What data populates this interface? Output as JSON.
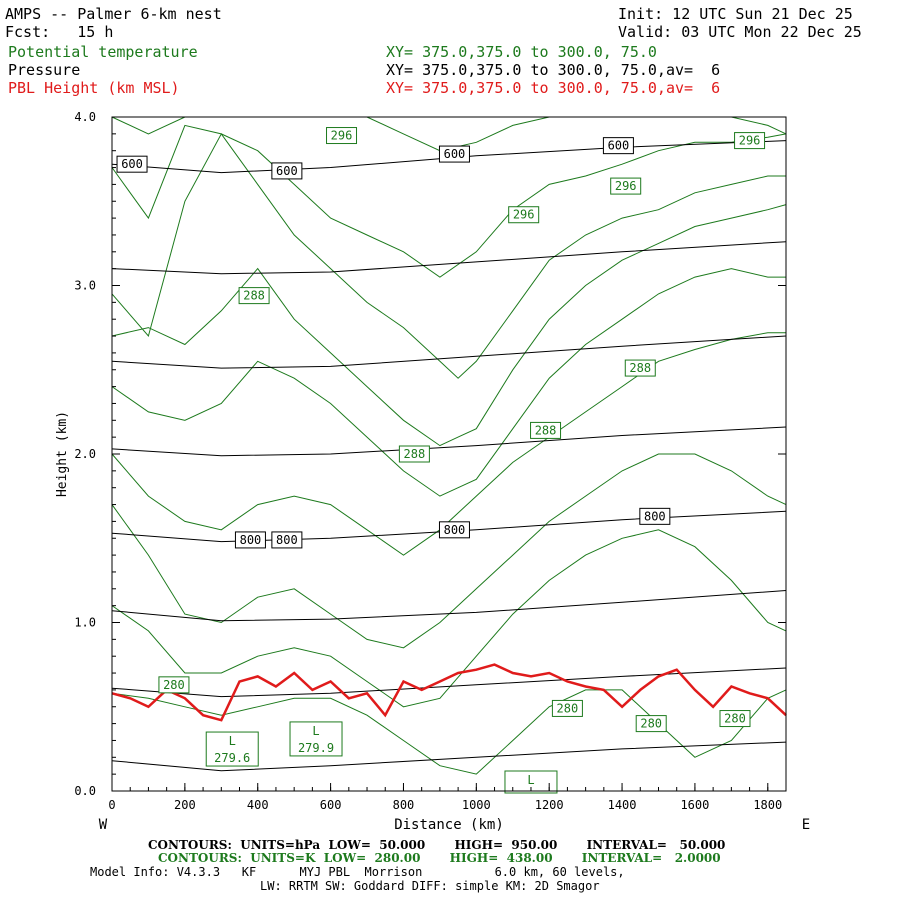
{
  "header": {
    "title": "AMPS -- Palmer 6-km nest",
    "fcst": "Fcst:   15 h",
    "init": "Init: 12 UTC Sun 21 Dec 25",
    "valid": "Valid: 03 UTC Mon 22 Dec 25",
    "fields": [
      {
        "name": "Potential temperature",
        "xy": "XY= 375.0,375.0 to 300.0, 75.0",
        "color": "#1d7a1d"
      },
      {
        "name": "Pressure",
        "xy": "XY= 375.0,375.0 to 300.0, 75.0,av=  6",
        "color": "#000000"
      },
      {
        "name": "PBL Height (km MSL)",
        "xy": "XY= 375.0,375.0 to 300.0, 75.0,av=  6",
        "color": "#e01b1b"
      }
    ]
  },
  "footer": {
    "contours_p": "CONTOURS:  UNITS=hPa  LOW=  50.000       HIGH=  950.00       INTERVAL=   50.000",
    "contours_k": "CONTOURS:  UNITS=K  LOW=  280.00       HIGH=  438.00       INTERVAL=   2.0000",
    "model_info": "Model Info: V4.3.3   KF      MYJ PBL  Morrison          6.0 km, 60 levels,",
    "model_info2": "LW: RRTM SW: Goddard DIFF: simple KM: 2D Smagor"
  },
  "chart_data": {
    "type": "line",
    "xlabel": "Distance (km)",
    "ylabel": "Height (km)",
    "x_ticks": [
      0,
      200,
      400,
      600,
      800,
      1000,
      1200,
      1400,
      1600,
      1800
    ],
    "y_ticks": [
      "0.0",
      "1.0",
      "2.0",
      "3.0",
      "4.0"
    ],
    "xlim": [
      0,
      1850
    ],
    "ylim": [
      0,
      4
    ],
    "x_end_labels": {
      "left": "W",
      "right": "E"
    },
    "pressure_contours": {
      "color": "#000000",
      "lines": [
        {
          "x": [
            0,
            300,
            600,
            1000,
            1400,
            1850
          ],
          "y": [
            0.18,
            0.12,
            0.15,
            0.2,
            0.25,
            0.29
          ]
        },
        {
          "x": [
            0,
            300,
            600,
            1000,
            1400,
            1850
          ],
          "y": [
            0.61,
            0.56,
            0.58,
            0.63,
            0.68,
            0.73
          ]
        },
        {
          "x": [
            0,
            300,
            600,
            1000,
            1400,
            1850
          ],
          "y": [
            1.07,
            1.01,
            1.02,
            1.06,
            1.12,
            1.19
          ]
        },
        {
          "x": [
            0,
            300,
            600,
            1000,
            1400,
            1850
          ],
          "y": [
            1.53,
            1.48,
            1.5,
            1.55,
            1.61,
            1.66
          ]
        },
        {
          "x": [
            0,
            300,
            600,
            1000,
            1400,
            1850
          ],
          "y": [
            2.03,
            1.99,
            2.0,
            2.05,
            2.11,
            2.16
          ]
        },
        {
          "x": [
            0,
            300,
            600,
            1000,
            1400,
            1850
          ],
          "y": [
            2.55,
            2.51,
            2.52,
            2.58,
            2.64,
            2.7
          ]
        },
        {
          "x": [
            0,
            300,
            600,
            1000,
            1400,
            1850
          ],
          "y": [
            3.1,
            3.07,
            3.08,
            3.14,
            3.2,
            3.26
          ]
        },
        {
          "x": [
            0,
            300,
            600,
            1000,
            1400,
            1850
          ],
          "y": [
            3.72,
            3.67,
            3.7,
            3.77,
            3.82,
            3.86
          ]
        }
      ],
      "labels": [
        {
          "text": "600",
          "x": 55,
          "y": 3.72
        },
        {
          "text": "600",
          "x": 480,
          "y": 3.68
        },
        {
          "text": "600",
          "x": 940,
          "y": 3.78
        },
        {
          "text": "600",
          "x": 1390,
          "y": 3.83
        },
        {
          "text": "800",
          "x": 380,
          "y": 1.49
        },
        {
          "text": "800",
          "x": 480,
          "y": 1.49
        },
        {
          "text": "800",
          "x": 940,
          "y": 1.55
        },
        {
          "text": "800",
          "x": 1490,
          "y": 1.63
        }
      ]
    },
    "theta_contours": {
      "color": "#1d7a1d",
      "lines": [
        {
          "x": [
            0,
            100,
            200,
            300,
            400,
            500,
            600,
            700,
            800,
            900,
            1000,
            1100,
            1200,
            1300,
            1400,
            1500,
            1600,
            1700,
            1800,
            1850
          ],
          "y": [
            4.0,
            3.9,
            4.0,
            4.0,
            4.0,
            4.0,
            4.0,
            4.0,
            3.9,
            3.8,
            3.85,
            3.95,
            4.0,
            4.0,
            4.0,
            4.0,
            4.0,
            4.0,
            3.95,
            3.9
          ]
        },
        {
          "x": [
            0,
            100,
            200,
            300,
            400,
            500,
            600,
            700,
            800,
            900,
            1000,
            1100,
            1200,
            1300,
            1400,
            1500,
            1600,
            1700,
            1800,
            1850
          ],
          "y": [
            3.7,
            3.4,
            3.95,
            3.9,
            3.8,
            3.6,
            3.4,
            3.3,
            3.2,
            3.05,
            3.2,
            3.45,
            3.6,
            3.65,
            3.72,
            3.8,
            3.85,
            3.85,
            3.88,
            3.9
          ]
        },
        {
          "x": [
            0,
            100,
            200,
            300,
            400,
            500,
            600,
            700,
            800,
            900,
            950,
            1000,
            1100,
            1200,
            1300,
            1400,
            1500,
            1600,
            1700,
            1800,
            1850
          ],
          "y": [
            2.95,
            2.7,
            3.5,
            3.9,
            3.6,
            3.3,
            3.1,
            2.9,
            2.75,
            2.55,
            2.45,
            2.55,
            2.85,
            3.15,
            3.3,
            3.4,
            3.45,
            3.55,
            3.6,
            3.65,
            3.65
          ]
        },
        {
          "x": [
            0,
            100,
            200,
            300,
            400,
            500,
            600,
            700,
            800,
            900,
            950,
            1000,
            1100,
            1200,
            1300,
            1400,
            1500,
            1600,
            1700,
            1800,
            1850
          ],
          "y": [
            2.7,
            2.75,
            2.65,
            2.85,
            3.1,
            2.8,
            2.6,
            2.4,
            2.2,
            2.05,
            2.1,
            2.15,
            2.5,
            2.8,
            3.0,
            3.15,
            3.25,
            3.35,
            3.4,
            3.45,
            3.48
          ]
        },
        {
          "x": [
            0,
            100,
            200,
            300,
            400,
            500,
            600,
            700,
            800,
            900,
            950,
            1000,
            1100,
            1200,
            1300,
            1400,
            1500,
            1600,
            1700,
            1800,
            1850
          ],
          "y": [
            2.4,
            2.25,
            2.2,
            2.3,
            2.55,
            2.45,
            2.3,
            2.1,
            1.9,
            1.75,
            1.8,
            1.85,
            2.15,
            2.45,
            2.65,
            2.8,
            2.95,
            3.05,
            3.1,
            3.05,
            3.05
          ]
        },
        {
          "x": [
            0,
            100,
            200,
            300,
            400,
            500,
            600,
            700,
            800,
            900,
            1000,
            1100,
            1200,
            1300,
            1400,
            1500,
            1600,
            1700,
            1800,
            1850
          ],
          "y": [
            2.0,
            1.75,
            1.6,
            1.55,
            1.7,
            1.75,
            1.7,
            1.55,
            1.4,
            1.55,
            1.75,
            1.95,
            2.1,
            2.25,
            2.4,
            2.55,
            2.62,
            2.68,
            2.72,
            2.72
          ]
        },
        {
          "x": [
            0,
            100,
            200,
            300,
            400,
            500,
            600,
            700,
            800,
            900,
            1000,
            1100,
            1200,
            1300,
            1400,
            1500,
            1600,
            1700,
            1800,
            1850
          ],
          "y": [
            1.7,
            1.4,
            1.05,
            1.0,
            1.15,
            1.2,
            1.05,
            0.9,
            0.85,
            1.0,
            1.2,
            1.4,
            1.6,
            1.75,
            1.9,
            2.0,
            2.0,
            1.9,
            1.75,
            1.7
          ]
        },
        {
          "x": [
            0,
            100,
            200,
            300,
            400,
            500,
            600,
            700,
            800,
            900,
            1000,
            1100,
            1200,
            1300,
            1400,
            1500,
            1600,
            1700,
            1800,
            1850
          ],
          "y": [
            1.1,
            0.95,
            0.7,
            0.7,
            0.8,
            0.85,
            0.8,
            0.65,
            0.5,
            0.55,
            0.8,
            1.05,
            1.25,
            1.4,
            1.5,
            1.55,
            1.45,
            1.25,
            1.0,
            0.95
          ]
        },
        {
          "x": [
            0,
            100,
            200,
            300,
            400,
            500,
            600,
            700,
            800,
            900,
            1000,
            1100,
            1200,
            1300,
            1400,
            1500,
            1600,
            1700,
            1800,
            1850
          ],
          "y": [
            0.58,
            0.55,
            0.5,
            0.45,
            0.5,
            0.55,
            0.55,
            0.45,
            0.3,
            0.15,
            0.1,
            0.3,
            0.5,
            0.6,
            0.6,
            0.4,
            0.2,
            0.3,
            0.55,
            0.6
          ]
        }
      ],
      "labels": [
        {
          "text": "296",
          "x": 630,
          "y": 3.89
        },
        {
          "text": "296",
          "x": 1410,
          "y": 3.59
        },
        {
          "text": "296",
          "x": 1130,
          "y": 3.42
        },
        {
          "text": "296",
          "x": 1750,
          "y": 3.86
        },
        {
          "text": "288",
          "x": 390,
          "y": 2.94
        },
        {
          "text": "288",
          "x": 1450,
          "y": 2.51
        },
        {
          "text": "288",
          "x": 1190,
          "y": 2.14
        },
        {
          "text": "288",
          "x": 830,
          "y": 2.0
        },
        {
          "text": "280",
          "x": 170,
          "y": 0.63
        },
        {
          "text": "280",
          "x": 1250,
          "y": 0.49
        },
        {
          "text": "280",
          "x": 1480,
          "y": 0.4
        },
        {
          "text": "280",
          "x": 1710,
          "y": 0.43
        }
      ],
      "lows": [
        {
          "text": "L",
          "value": "279.6",
          "x": 330,
          "y": 0.16
        },
        {
          "text": "L",
          "value": "279.9",
          "x": 560,
          "y": 0.22
        },
        {
          "text": "L",
          "value": "",
          "x": 1150,
          "y": 0.0
        }
      ]
    },
    "pbl_height": {
      "color": "#e01b1b",
      "x": [
        0,
        50,
        100,
        150,
        200,
        250,
        300,
        350,
        400,
        450,
        500,
        550,
        600,
        650,
        700,
        750,
        800,
        850,
        900,
        950,
        1000,
        1050,
        1100,
        1150,
        1200,
        1250,
        1300,
        1350,
        1400,
        1450,
        1500,
        1550,
        1600,
        1650,
        1700,
        1750,
        1800,
        1850
      ],
      "y": [
        0.58,
        0.55,
        0.5,
        0.6,
        0.55,
        0.45,
        0.42,
        0.65,
        0.68,
        0.62,
        0.7,
        0.6,
        0.65,
        0.55,
        0.58,
        0.45,
        0.65,
        0.6,
        0.65,
        0.7,
        0.72,
        0.75,
        0.7,
        0.68,
        0.7,
        0.65,
        0.62,
        0.6,
        0.5,
        0.6,
        0.68,
        0.72,
        0.6,
        0.5,
        0.62,
        0.58,
        0.55,
        0.45
      ]
    }
  }
}
